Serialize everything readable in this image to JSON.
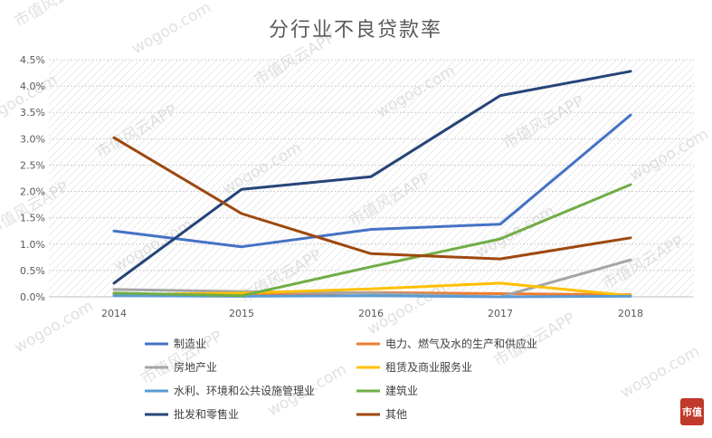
{
  "chart_data": {
    "type": "line",
    "title": "分行业不良贷款率",
    "xlabel": "",
    "ylabel": "",
    "categories": [
      "2014",
      "2015",
      "2016",
      "2017",
      "2018"
    ],
    "ylim": [
      0,
      4.5
    ],
    "yticks": [
      "0.0%",
      "0.5%",
      "1.0%",
      "1.5%",
      "2.0%",
      "2.5%",
      "3.0%",
      "3.5%",
      "4.0%",
      "4.5%"
    ],
    "grid": "horizontal dotted, hatched plot background",
    "legend_position": "bottom",
    "series": [
      {
        "name": "制造业",
        "color": "#4472c4",
        "values": [
          1.25,
          0.95,
          1.28,
          1.38,
          3.45
        ]
      },
      {
        "name": "电力、燃气及水的生产和供应业",
        "color": "#ed7d31",
        "values": [
          0.05,
          0.04,
          0.08,
          0.06,
          0.04
        ]
      },
      {
        "name": "房地产业",
        "color": "#a5a5a5",
        "values": [
          0.14,
          0.1,
          0.07,
          0.0,
          0.7
        ]
      },
      {
        "name": "租赁及商业服务业",
        "color": "#ffc000",
        "values": [
          0.04,
          0.07,
          0.15,
          0.26,
          0.02
        ]
      },
      {
        "name": "水利、环境和公共设施管理业",
        "color": "#5b9bd5",
        "values": [
          0.02,
          0.01,
          0.02,
          0.0,
          0.01
        ]
      },
      {
        "name": "建筑业",
        "color": "#70ad47",
        "values": [
          0.07,
          0.02,
          0.57,
          1.1,
          2.13
        ]
      },
      {
        "name": "批发和零售业",
        "color": "#264478",
        "values": [
          0.26,
          2.04,
          2.28,
          3.82,
          4.28
        ]
      },
      {
        "name": "其他",
        "color": "#9e480e",
        "values": [
          3.02,
          1.58,
          0.82,
          0.72,
          1.12
        ]
      }
    ]
  },
  "watermark": {
    "text_a": "wogoo.com",
    "text_b": "市值风云APP"
  },
  "logo": {
    "text": "市值",
    "color": "#c0392b",
    "icon": "brand-seal-icon"
  }
}
